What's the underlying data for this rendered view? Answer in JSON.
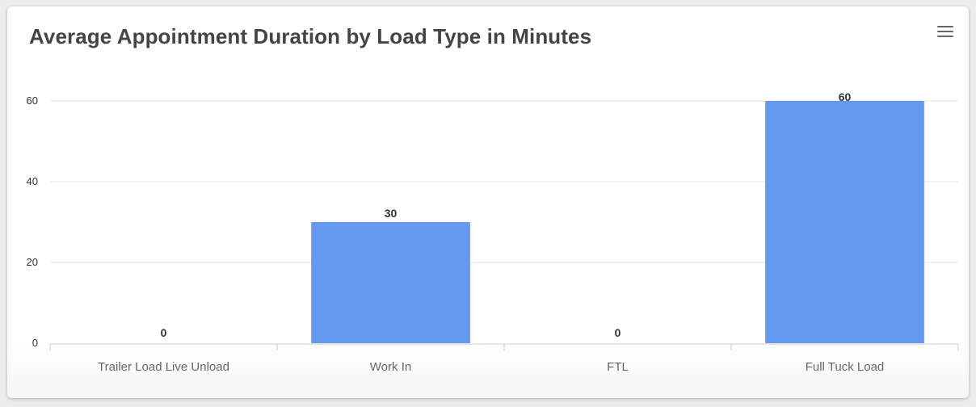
{
  "colors": {
    "bar": "#6399ee",
    "grid": "#e6e6e6",
    "axis": "#cccccc",
    "title": "#444444",
    "tick_label": "#333333",
    "data_label": "#333333",
    "menu_icon": "#666666"
  },
  "menu": {
    "icon": "hamburger-menu-icon"
  },
  "chart_data": {
    "type": "bar",
    "title": "Average Appointment Duration by Load Type in Minutes",
    "xlabel": "",
    "ylabel": "",
    "categories": [
      "Trailer Load Live Unload",
      "Work In",
      "FTL",
      "Full Tuck Load"
    ],
    "values": [
      0,
      30,
      0,
      60
    ],
    "data_labels": [
      "0",
      "30",
      "0",
      "60"
    ],
    "ylim": [
      0,
      60
    ],
    "yticks": [
      0,
      20,
      40,
      60
    ],
    "grid": true,
    "legend": "none"
  }
}
